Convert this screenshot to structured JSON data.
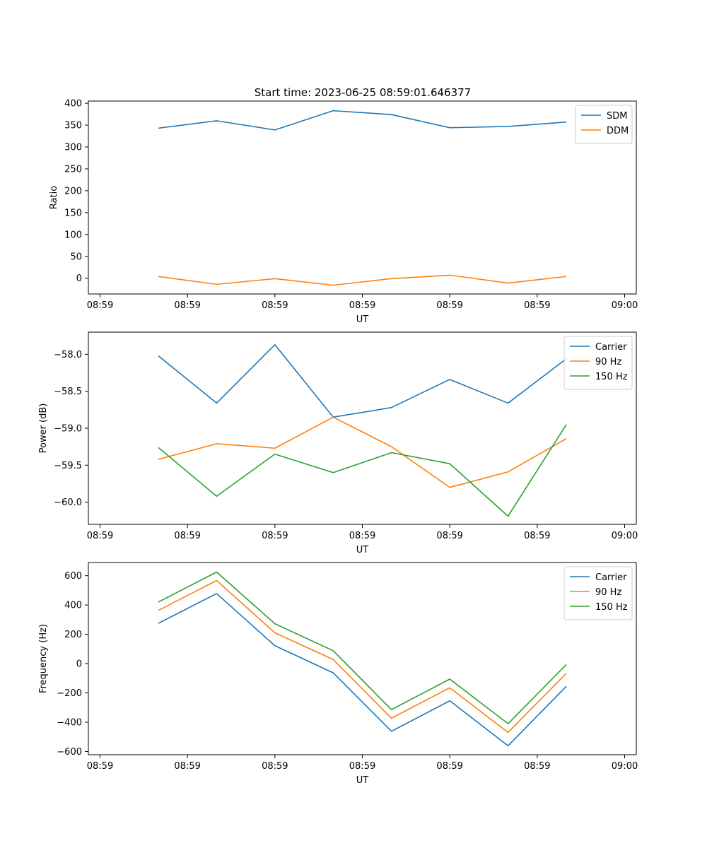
{
  "figure_title": "Start time: 2023-06-25 08:59:01.646377",
  "chart_data": [
    {
      "type": "line",
      "title": "Start time: 2023-06-25 08:59:01.646377",
      "xlabel": "UT",
      "ylabel": "Ratio",
      "x": [
        1,
        2,
        3,
        4,
        5,
        6,
        7,
        8
      ],
      "xlim": [
        -0.2,
        9.2
      ],
      "xticks": [
        0,
        1.5,
        3,
        4.5,
        6,
        7.5,
        9
      ],
      "xtick_labels": [
        "08:59",
        "08:59",
        "08:59",
        "08:59",
        "08:59",
        "08:59",
        "09:00"
      ],
      "ylim": [
        -36,
        405
      ],
      "yticks": [
        0,
        50,
        100,
        150,
        200,
        250,
        300,
        350,
        400
      ],
      "ytick_labels": [
        "0",
        "50",
        "100",
        "150",
        "200",
        "250",
        "300",
        "350",
        "400"
      ],
      "grid": false,
      "legend": "top-right",
      "series": [
        {
          "name": "SDM",
          "color": "#1f77b4",
          "values": [
            343,
            360,
            339,
            383,
            374,
            344,
            347,
            357
          ]
        },
        {
          "name": "DDM",
          "color": "#ff7f0e",
          "values": [
            4,
            -14,
            -1,
            -16,
            -1,
            7,
            -11,
            4
          ]
        }
      ]
    },
    {
      "type": "line",
      "xlabel": "UT",
      "ylabel": "Power (dB)",
      "x": [
        1,
        2,
        3,
        4,
        5,
        6,
        7,
        8
      ],
      "xlim": [
        -0.2,
        9.2
      ],
      "xticks": [
        0,
        1.5,
        3,
        4.5,
        6,
        7.5,
        9
      ],
      "xtick_labels": [
        "08:59",
        "08:59",
        "08:59",
        "08:59",
        "08:59",
        "08:59",
        "09:00"
      ],
      "ylim": [
        -60.3,
        -57.7
      ],
      "yticks": [
        -60.0,
        -59.5,
        -59.0,
        -58.5,
        -58.0
      ],
      "ytick_labels": [
        "−60.0",
        "−59.5",
        "−59.0",
        "−58.5",
        "−58.0"
      ],
      "grid": false,
      "legend": "top-right",
      "series": [
        {
          "name": "Carrier",
          "color": "#1f77b4",
          "values": [
            -58.02,
            -58.66,
            -57.87,
            -58.85,
            -58.72,
            -58.34,
            -58.66,
            -58.06
          ]
        },
        {
          "name": "90 Hz",
          "color": "#ff7f0e",
          "values": [
            -59.42,
            -59.21,
            -59.27,
            -58.85,
            -59.25,
            -59.8,
            -59.59,
            -59.14
          ]
        },
        {
          "name": "150 Hz",
          "color": "#2ca02c",
          "values": [
            -59.26,
            -59.92,
            -59.35,
            -59.6,
            -59.33,
            -59.48,
            -60.19,
            -58.95
          ]
        }
      ]
    },
    {
      "type": "line",
      "xlabel": "UT",
      "ylabel": "Frequency (Hz)",
      "x": [
        1,
        2,
        3,
        4,
        5,
        6,
        7,
        8
      ],
      "xlim": [
        -0.2,
        9.2
      ],
      "xticks": [
        0,
        1.5,
        3,
        4.5,
        6,
        7.5,
        9
      ],
      "xtick_labels": [
        "08:59",
        "08:59",
        "08:59",
        "08:59",
        "08:59",
        "08:59",
        "09:00"
      ],
      "ylim": [
        -622,
        690
      ],
      "yticks": [
        -600,
        -400,
        -200,
        0,
        200,
        400,
        600
      ],
      "ytick_labels": [
        "−600",
        "−400",
        "−200",
        "0",
        "200",
        "400",
        "600"
      ],
      "grid": false,
      "legend": "top-right",
      "series": [
        {
          "name": "Carrier",
          "color": "#1f77b4",
          "values": [
            275,
            478,
            122,
            -63,
            -462,
            -254,
            -561,
            -155
          ]
        },
        {
          "name": "90 Hz",
          "color": "#ff7f0e",
          "values": [
            363,
            567,
            210,
            28,
            -373,
            -165,
            -470,
            -66
          ]
        },
        {
          "name": "150 Hz",
          "color": "#2ca02c",
          "values": [
            420,
            625,
            272,
            88,
            -314,
            -106,
            -410,
            -6
          ]
        }
      ]
    }
  ]
}
